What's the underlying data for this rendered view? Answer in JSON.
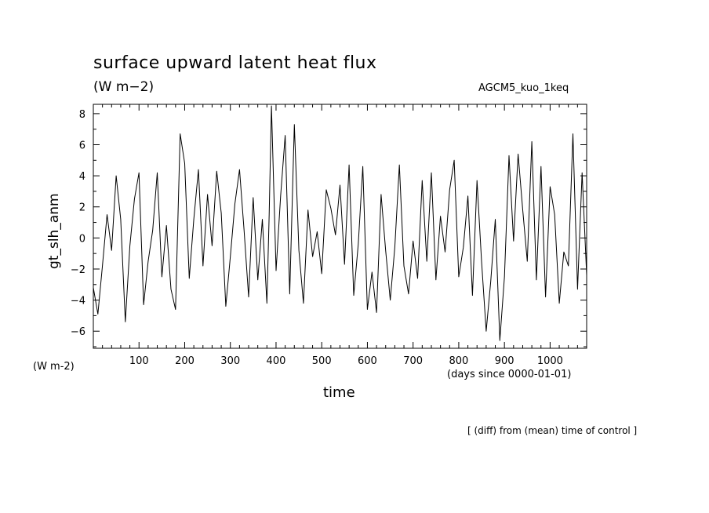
{
  "header": {
    "title": "surface upward latent heat flux",
    "units": "(W m−2)",
    "run_name": "AGCM5_kuo_1keq"
  },
  "footer": {
    "note": "[ (diff) from (mean) time of control ]"
  },
  "chart_data": {
    "type": "line",
    "title": "surface upward latent heat flux",
    "subtitle": "(W m−2)",
    "xlabel": "time",
    "xunits": "(days since 0000-01-01)",
    "ylabel": "gt_slh_anm",
    "yunits": "(W m-2)",
    "xlim": [
      0,
      1080
    ],
    "ylim": [
      -7.1,
      8.6
    ],
    "xticks": [
      100,
      200,
      300,
      400,
      500,
      600,
      700,
      800,
      900,
      1000
    ],
    "yticks": [
      -6,
      -4,
      -2,
      0,
      2,
      4,
      6,
      8
    ],
    "grid": false,
    "series": [
      {
        "x": [
          0,
          10,
          20,
          30,
          40,
          50,
          60,
          70,
          80,
          90,
          100,
          110,
          120,
          130,
          140,
          150,
          160,
          170,
          180,
          190,
          200,
          210,
          220,
          230,
          240,
          250,
          260,
          270,
          280,
          290,
          300,
          310,
          320,
          330,
          340,
          350,
          360,
          370,
          380,
          385,
          390,
          400,
          410,
          420,
          430,
          440,
          450,
          460,
          470,
          480,
          490,
          500,
          510,
          520,
          530,
          540,
          550,
          560,
          570,
          580,
          590,
          600,
          610,
          620,
          630,
          640,
          650,
          660,
          670,
          680,
          690,
          700,
          710,
          720,
          730,
          740,
          750,
          760,
          770,
          780,
          790,
          800,
          810,
          820,
          830,
          840,
          850,
          860,
          870,
          880,
          890,
          900,
          910,
          920,
          930,
          940,
          950,
          960,
          970,
          980,
          990,
          1000,
          1010,
          1020,
          1030,
          1040,
          1050,
          1060,
          1070,
          1080
        ],
        "y": [
          -3.2,
          -4.9,
          -1.8,
          1.5,
          -0.8,
          4.0,
          1.2,
          -5.4,
          -0.5,
          2.5,
          4.2,
          -4.3,
          -1.5,
          0.5,
          4.2,
          -2.5,
          0.8,
          -3.3,
          -4.6,
          6.7,
          4.8,
          -2.6,
          1.2,
          4.4,
          -1.8,
          2.8,
          -0.5,
          4.3,
          1.6,
          -4.4,
          -1.2,
          2.2,
          4.4,
          0.5,
          -3.8,
          2.6,
          -2.7,
          1.2,
          -4.2,
          1.5,
          8.5,
          -2.1,
          2.7,
          6.6,
          -3.6,
          7.3,
          -0.8,
          -4.2,
          1.8,
          -1.2,
          0.4,
          -2.3,
          3.1,
          1.9,
          0.2,
          3.4,
          -1.7,
          4.7,
          -3.7,
          -0.4,
          4.6,
          -4.6,
          -2.2,
          -4.8,
          2.8,
          -0.8,
          -4.0,
          -0.6,
          4.7,
          -1.8,
          -3.6,
          -0.2,
          -2.6,
          3.7,
          -1.5,
          4.2,
          -2.7,
          1.4,
          -0.9,
          3.1,
          5.0,
          -2.5,
          -0.6,
          2.7,
          -3.7,
          3.7,
          -1.5,
          -6.0,
          -2.8,
          1.2,
          -6.6,
          -2.5,
          5.3,
          -0.2,
          5.4,
          1.8,
          -1.5,
          6.2,
          -2.7,
          4.6,
          -3.8,
          3.3,
          1.5,
          -4.2,
          -0.9,
          -1.8,
          6.7,
          -3.3,
          4.2,
          -2.4
        ]
      }
    ]
  },
  "style": {
    "line_color": "#000000",
    "background": "#ffffff"
  }
}
